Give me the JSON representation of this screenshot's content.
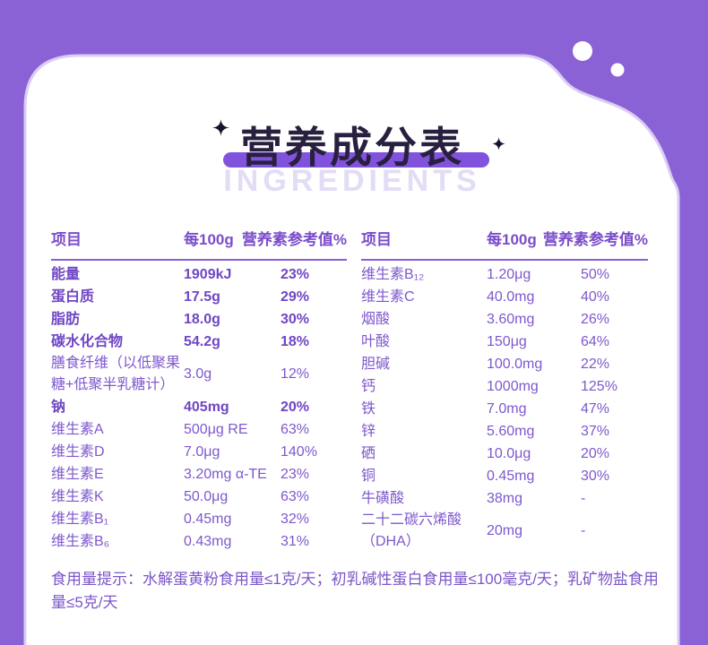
{
  "header": {
    "title": "营养成分表",
    "subtitle": "INGREDIENTS"
  },
  "tables": [
    {
      "headers": [
        "项目",
        "每100g",
        "营养素参考值%"
      ],
      "rows": [
        {
          "name": "能量",
          "value": "1909kJ",
          "nrv": "23%",
          "bold": true
        },
        {
          "name": "蛋白质",
          "value": "17.5g",
          "nrv": "29%",
          "bold": true
        },
        {
          "name": "脂肪",
          "value": "18.0g",
          "nrv": "30%",
          "bold": true
        },
        {
          "name": "碳水化合物",
          "value": "54.2g",
          "nrv": "18%",
          "bold": true
        },
        {
          "name": "膳食纤维（以低聚果糖+低聚半乳糖计）",
          "value": "3.0g",
          "nrv": "12%",
          "bold": false
        },
        {
          "name": "钠",
          "value": "405mg",
          "nrv": "20%",
          "bold": true
        },
        {
          "name": "维生素A",
          "value": "500μg RE",
          "nrv": "63%",
          "bold": false
        },
        {
          "name": "维生素D",
          "value": "7.0μg",
          "nrv": "140%",
          "bold": false
        },
        {
          "name": "维生素E",
          "value": "3.20mg α-TE",
          "nrv": "23%",
          "bold": false
        },
        {
          "name": "维生素K",
          "value": "50.0μg",
          "nrv": "63%",
          "bold": false
        },
        {
          "name": "维生素B₁",
          "value": "0.45mg",
          "nrv": "32%",
          "bold": false
        },
        {
          "name": "维生素B₆",
          "value": "0.43mg",
          "nrv": "31%",
          "bold": false
        }
      ]
    },
    {
      "headers": [
        "项目",
        "每100g",
        "营养素参考值%"
      ],
      "rows": [
        {
          "name": "维生素B₁₂",
          "value": "1.20μg",
          "nrv": "50%",
          "bold": false
        },
        {
          "name": "维生素C",
          "value": "40.0mg",
          "nrv": "40%",
          "bold": false
        },
        {
          "name": "烟酸",
          "value": "3.60mg",
          "nrv": "26%",
          "bold": false
        },
        {
          "name": "叶酸",
          "value": "150μg",
          "nrv": "64%",
          "bold": false
        },
        {
          "name": "胆碱",
          "value": "100.0mg",
          "nrv": "22%",
          "bold": false
        },
        {
          "name": "钙",
          "value": "1000mg",
          "nrv": "125%",
          "bold": false
        },
        {
          "name": "铁",
          "value": "7.0mg",
          "nrv": "47%",
          "bold": false
        },
        {
          "name": "锌",
          "value": "5.60mg",
          "nrv": "37%",
          "bold": false
        },
        {
          "name": "硒",
          "value": "10.0μg",
          "nrv": "20%",
          "bold": false
        },
        {
          "name": "铜",
          "value": "0.45mg",
          "nrv": "30%",
          "bold": false
        },
        {
          "name": "牛磺酸",
          "value": "38mg",
          "nrv": "-",
          "bold": false
        },
        {
          "name": "二十二碳六烯酸（DHA）",
          "value": "20mg",
          "nrv": "-",
          "bold": false
        }
      ]
    }
  ],
  "note": "食用量提示：水解蛋黄粉食用量≤1克/天；初乳碱性蛋白食用量≤100毫克/天；乳矿物盐食用量≤5克/天",
  "colors": {
    "background_purple": "#8A62D5",
    "card_white": "#FFFFFF",
    "card_edge_highlight": "#DACDF5",
    "title_dark": "#29203F",
    "title_pill": "#8152DB",
    "ghost_subtitle": "#E3DCF5",
    "table_text": "#7E58CC",
    "table_bold_text": "#6F46C4",
    "header_rule": "#8A5FD2"
  }
}
